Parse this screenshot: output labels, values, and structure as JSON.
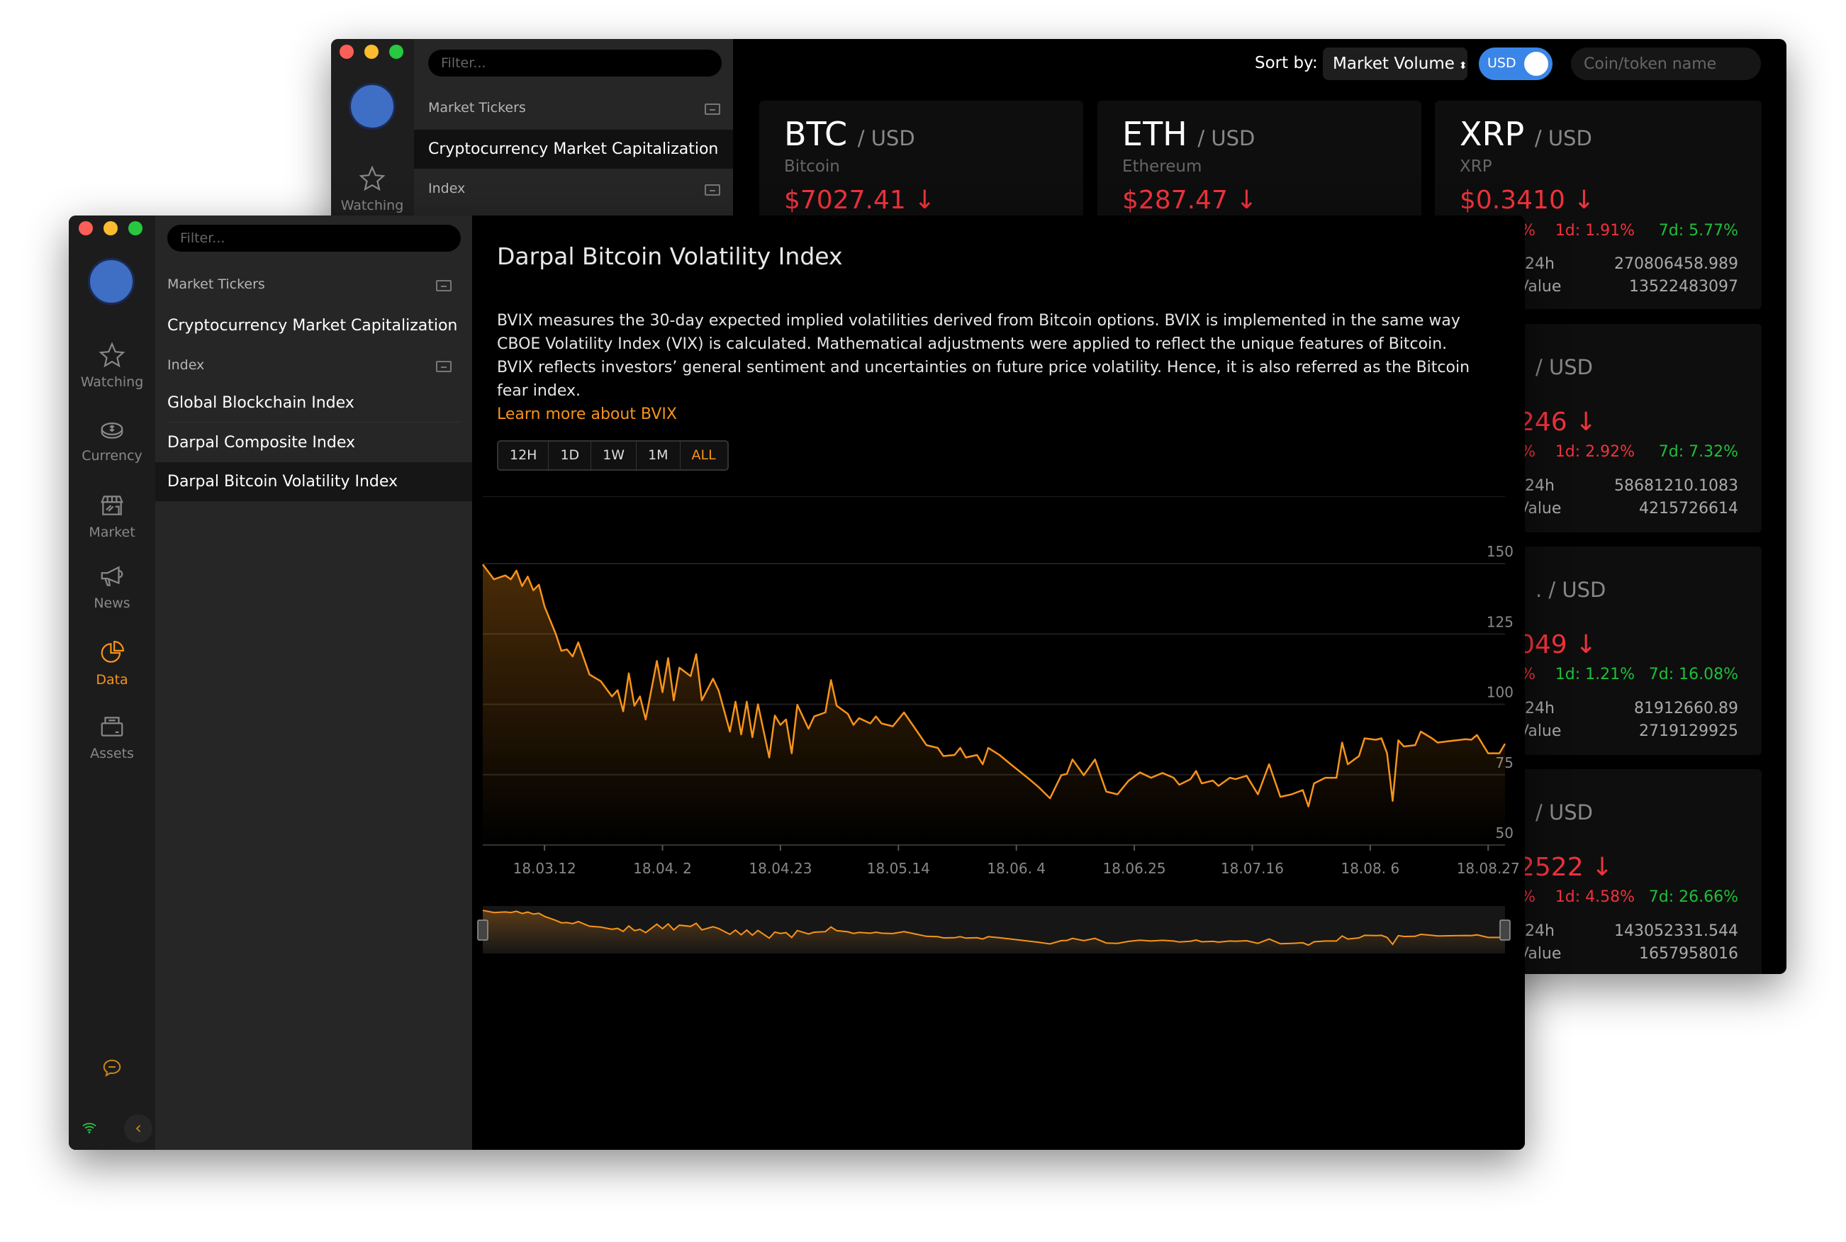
{
  "colors": {
    "accent": "#f7931a",
    "down": "#f0323c",
    "up": "#1fbf3b",
    "toggle": "#3a86e8"
  },
  "back_window": {
    "sidebar": {
      "watching_label": "Watching"
    },
    "list": {
      "filter_placeholder": "Filter...",
      "section_market": "Market Tickers",
      "item_market_cap": "Cryptocurrency Market Capitalization",
      "section_index": "Index"
    },
    "toolbar": {
      "sort_label": "Sort by:",
      "sort_value": "Market Volume",
      "currency_toggle": "USD",
      "search_placeholder": "Coin/token name"
    },
    "cards": [
      {
        "ticker": "BTC",
        "quote": "/ USD",
        "name": "Bitcoin",
        "price": "$7027.41 ↓"
      },
      {
        "ticker": "ETH",
        "quote": "/ USD",
        "name": "Ethereum",
        "price": "$287.47 ↓"
      },
      {
        "ticker": "XRP",
        "quote": "/ USD",
        "name": "XRP",
        "price": "$0.3410 ↓",
        "change_24h": "%",
        "change_1d": "1d: 1.91%",
        "change_7d": "7d: 5.77%",
        "volume_label": "24h",
        "volume": "270806458.989",
        "value_label": "Value",
        "value": "13522483097"
      },
      {
        "quote": "/ USD",
        "price": "246 ↓",
        "change_24h": "%",
        "change_1d": "1d: 2.92%",
        "change_7d": "7d: 7.32%",
        "volume_label": "24h",
        "volume": "58681210.1083",
        "value_label": "Value",
        "value": "4215726614"
      },
      {
        "quote": ". / USD",
        "price": "049 ↓",
        "change_24h": "%",
        "change_1d": "1d: 1.21%",
        "change_7d": "7d: 16.08%",
        "volume_label": "24h",
        "volume": "81912660.89",
        "value_label": "Value",
        "value": "2719129925"
      },
      {
        "quote": "/ USD",
        "price": "2522 ↓",
        "change_24h": "%",
        "change_1d": "1d: 4.58%",
        "change_7d": "7d: 26.66%",
        "volume_label": "24h",
        "volume": "143052331.544",
        "value_label": "Value",
        "value": "1657958016"
      }
    ]
  },
  "front_window": {
    "nav": [
      {
        "label": "Watching",
        "icon": "star-icon"
      },
      {
        "label": "Currency",
        "icon": "coin-icon"
      },
      {
        "label": "Market",
        "icon": "store-icon"
      },
      {
        "label": "News",
        "icon": "megaphone-icon"
      },
      {
        "label": "Data",
        "icon": "pie-chart-icon",
        "active": true
      },
      {
        "label": "Assets",
        "icon": "wallet-icon"
      }
    ],
    "list": {
      "filter_placeholder": "Filter...",
      "section_market": "Market Tickers",
      "item_market_cap": "Cryptocurrency Market Capitalization",
      "section_index": "Index",
      "items": [
        "Global Blockchain Index",
        "Darpal Composite Index",
        "Darpal Bitcoin Volatility Index"
      ],
      "selected": "Darpal Bitcoin Volatility Index"
    },
    "main": {
      "title": "Darpal Bitcoin Volatility Index",
      "description": "BVIX measures the 30-day expected implied volatilities derived from Bitcoin options. BVIX is implemented in the same way CBOE Volatility Index (VIX) is calculated. Mathematical adjustments were applied to reflect the unique features of Bitcoin.",
      "description2": "BVIX reflects investors’ general sentiment and uncertainties on future price volatility. Hence, it is also referred as the Bitcoin fear index.",
      "link": "Learn more about BVIX",
      "ranges": [
        "12H",
        "1D",
        "1W",
        "1M",
        "ALL"
      ],
      "selected_range": "ALL"
    }
  },
  "chart_data": {
    "type": "area",
    "xlim": [
      "2018-03-01",
      "2018-08-30"
    ],
    "ylim": [
      50,
      150
    ],
    "grid": true,
    "yticks": [
      50,
      75,
      100,
      125,
      150
    ],
    "xticks": [
      {
        "date": "2018-03-12",
        "label": "18.03.12"
      },
      {
        "date": "2018-04-02",
        "label": "18.04. 2"
      },
      {
        "date": "2018-04-23",
        "label": "18.04.23"
      },
      {
        "date": "2018-05-14",
        "label": "18.05.14"
      },
      {
        "date": "2018-06-04",
        "label": "18.06. 4"
      },
      {
        "date": "2018-06-25",
        "label": "18.06.25"
      },
      {
        "date": "2018-07-16",
        "label": "18.07.16"
      },
      {
        "date": "2018-08-06",
        "label": "18.08. 6"
      },
      {
        "date": "2018-08-27",
        "label": "18.08.27"
      }
    ],
    "series": [
      {
        "color": "#f7931a",
        "points": [
          [
            "2018-03-01",
            149.7
          ],
          [
            "2018-03-03",
            144.4
          ],
          [
            "2018-03-05",
            145.8
          ],
          [
            "2018-03-06",
            144.4
          ],
          [
            "2018-03-07",
            147.5
          ],
          [
            "2018-03-08",
            142
          ],
          [
            "2018-03-09",
            145.4
          ],
          [
            "2018-03-10",
            140.5
          ],
          [
            "2018-03-11",
            142.5
          ],
          [
            "2018-03-12",
            134.7
          ],
          [
            "2018-03-14",
            125
          ],
          [
            "2018-03-15",
            119
          ],
          [
            "2018-03-16",
            119.5
          ],
          [
            "2018-03-17",
            117
          ],
          [
            "2018-03-18",
            122
          ],
          [
            "2018-03-20",
            110.6
          ],
          [
            "2018-03-22",
            108.2
          ],
          [
            "2018-03-24",
            102.8
          ],
          [
            "2018-03-25",
            105
          ],
          [
            "2018-03-26",
            97.5
          ],
          [
            "2018-03-27",
            111
          ],
          [
            "2018-03-28",
            99.5
          ],
          [
            "2018-03-29",
            102.8
          ],
          [
            "2018-03-30",
            94.6
          ],
          [
            "2018-04-01",
            115.4
          ],
          [
            "2018-04-02",
            104.3
          ],
          [
            "2018-04-03",
            116.4
          ],
          [
            "2018-04-04",
            101.4
          ],
          [
            "2018-04-05",
            113
          ],
          [
            "2018-04-07",
            110
          ],
          [
            "2018-04-08",
            117.8
          ],
          [
            "2018-04-09",
            101.4
          ],
          [
            "2018-04-11",
            109.1
          ],
          [
            "2018-04-12",
            104.8
          ],
          [
            "2018-04-14",
            90.3
          ],
          [
            "2018-04-15",
            100.9
          ],
          [
            "2018-04-16",
            89.3
          ],
          [
            "2018-04-17",
            100.9
          ],
          [
            "2018-04-18",
            88.3
          ],
          [
            "2018-04-19",
            100
          ],
          [
            "2018-04-21",
            81.1
          ],
          [
            "2018-04-22",
            96
          ],
          [
            "2018-04-23",
            92.7
          ],
          [
            "2018-04-24",
            94.6
          ],
          [
            "2018-04-25",
            82.6
          ],
          [
            "2018-04-26",
            99.8
          ],
          [
            "2018-04-28",
            91.3
          ],
          [
            "2018-04-29",
            95.7
          ],
          [
            "2018-05-01",
            97.1
          ],
          [
            "2018-05-02",
            108.6
          ],
          [
            "2018-05-03",
            99.5
          ],
          [
            "2018-05-05",
            96.6
          ],
          [
            "2018-05-06",
            92.7
          ],
          [
            "2018-05-07",
            95.1
          ],
          [
            "2018-05-09",
            93.2
          ],
          [
            "2018-05-10",
            95.7
          ],
          [
            "2018-05-11",
            93.2
          ],
          [
            "2018-05-13",
            92.2
          ],
          [
            "2018-05-15",
            97.1
          ],
          [
            "2018-05-17",
            91.3
          ],
          [
            "2018-05-19",
            85.5
          ],
          [
            "2018-05-21",
            84.5
          ],
          [
            "2018-05-22",
            81.6
          ],
          [
            "2018-05-24",
            82
          ],
          [
            "2018-05-25",
            84.5
          ],
          [
            "2018-05-26",
            81.1
          ],
          [
            "2018-05-28",
            82
          ],
          [
            "2018-05-29",
            78.7
          ],
          [
            "2018-05-30",
            84.5
          ],
          [
            "2018-06-01",
            82
          ],
          [
            "2018-06-03",
            78.7
          ],
          [
            "2018-06-06",
            73.9
          ],
          [
            "2018-06-08",
            70.5
          ],
          [
            "2018-06-10",
            66.6
          ],
          [
            "2018-06-12",
            74.8
          ],
          [
            "2018-06-13",
            75.3
          ],
          [
            "2018-06-14",
            80.4
          ],
          [
            "2018-06-16",
            74.8
          ],
          [
            "2018-06-18",
            80.4
          ],
          [
            "2018-06-20",
            69
          ],
          [
            "2018-06-22",
            68
          ],
          [
            "2018-06-24",
            72.9
          ],
          [
            "2018-06-26",
            75.8
          ],
          [
            "2018-06-28",
            73.9
          ],
          [
            "2018-06-30",
            75.6
          ],
          [
            "2018-07-02",
            73.9
          ],
          [
            "2018-07-03",
            71.4
          ],
          [
            "2018-07-05",
            73.4
          ],
          [
            "2018-07-06",
            76.3
          ],
          [
            "2018-07-07",
            71.9
          ],
          [
            "2018-07-09",
            72.9
          ],
          [
            "2018-07-10",
            71
          ],
          [
            "2018-07-12",
            73.9
          ],
          [
            "2018-07-13",
            73.4
          ],
          [
            "2018-07-15",
            74.6
          ],
          [
            "2018-07-17",
            68
          ],
          [
            "2018-07-19",
            78.7
          ],
          [
            "2018-07-21",
            67.1
          ],
          [
            "2018-07-23",
            68
          ],
          [
            "2018-07-25",
            69.5
          ],
          [
            "2018-07-26",
            63.7
          ],
          [
            "2018-07-27",
            71.9
          ],
          [
            "2018-07-29",
            73.9
          ],
          [
            "2018-07-31",
            73.9
          ],
          [
            "2018-08-01",
            86.4
          ],
          [
            "2018-08-02",
            78.7
          ],
          [
            "2018-08-04",
            81.6
          ],
          [
            "2018-08-05",
            87.9
          ],
          [
            "2018-08-07",
            87.4
          ],
          [
            "2018-08-08",
            87.9
          ],
          [
            "2018-08-09",
            82.6
          ],
          [
            "2018-08-10",
            65.7
          ],
          [
            "2018-08-11",
            87.2
          ],
          [
            "2018-08-12",
            85
          ],
          [
            "2018-08-14",
            85.5
          ],
          [
            "2018-08-15",
            90.3
          ],
          [
            "2018-08-17",
            87.9
          ],
          [
            "2018-08-18",
            86.4
          ],
          [
            "2018-08-20",
            86.9
          ],
          [
            "2018-08-23",
            87.6
          ],
          [
            "2018-08-24",
            87.4
          ],
          [
            "2018-08-25",
            89.1
          ],
          [
            "2018-08-27",
            82.6
          ],
          [
            "2018-08-29",
            82.6
          ],
          [
            "2018-08-30",
            86
          ]
        ]
      }
    ],
    "navigator": {
      "range_start": "2018-03-01",
      "range_end": "2018-08-30"
    }
  }
}
